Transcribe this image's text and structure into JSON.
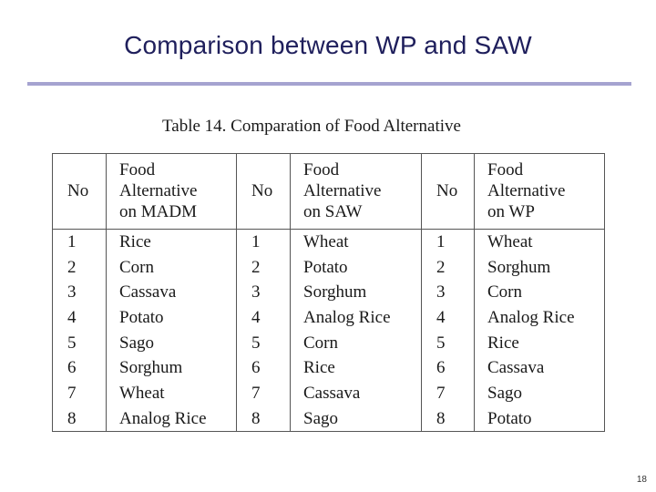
{
  "slide": {
    "title": "Comparison between WP and SAW",
    "page_number": "18"
  },
  "table": {
    "caption": "Table 14. Comparation of Food Alternative",
    "headers": [
      [
        "No"
      ],
      [
        "Food",
        "Alternative",
        "on MADM"
      ],
      [
        "No"
      ],
      [
        "Food",
        "Alternative",
        "on SAW"
      ],
      [
        "No"
      ],
      [
        "Food",
        "Alternative",
        "on WP"
      ]
    ],
    "rows": [
      [
        "1",
        "Rice",
        "1",
        "Wheat",
        "1",
        "Wheat"
      ],
      [
        "2",
        "Corn",
        "2",
        "Potato",
        "2",
        "Sorghum"
      ],
      [
        "3",
        "Cassava",
        "3",
        "Sorghum",
        "3",
        "Corn"
      ],
      [
        "4",
        "Potato",
        "4",
        "Analog Rice",
        "4",
        "Analog Rice"
      ],
      [
        "5",
        "Sago",
        "5",
        "Corn",
        "5",
        "Rice"
      ],
      [
        "6",
        "Sorghum",
        "6",
        "Rice",
        "6",
        "Cassava"
      ],
      [
        "7",
        "Wheat",
        "7",
        "Cassava",
        "7",
        "Sago"
      ],
      [
        "8",
        "Analog Rice",
        "8",
        "Sago",
        "8",
        "Potato"
      ]
    ]
  }
}
